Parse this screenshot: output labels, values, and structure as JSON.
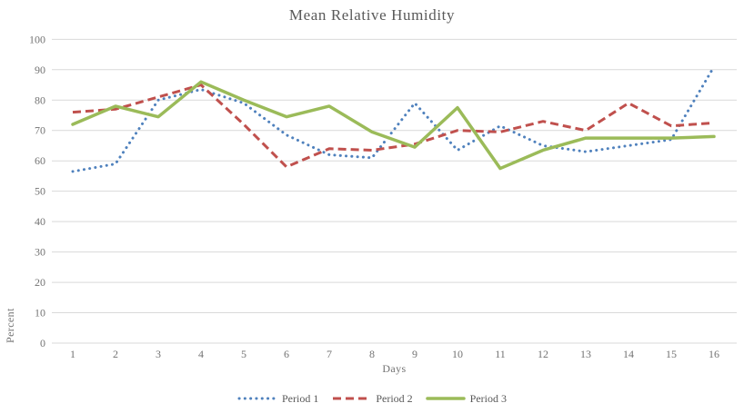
{
  "chart_data": {
    "type": "line",
    "title": "Mean Relative Humidity",
    "xlabel": "Days",
    "ylabel": "Percent",
    "categories": [
      1,
      2,
      3,
      4,
      5,
      6,
      7,
      8,
      9,
      10,
      11,
      12,
      13,
      14,
      15,
      16
    ],
    "y_ticks": [
      0,
      10,
      20,
      30,
      40,
      50,
      60,
      70,
      80,
      90,
      100
    ],
    "ylim": [
      0,
      100
    ],
    "grid": "horizontal",
    "legend_position": "bottom-center",
    "series": [
      {
        "name": "Period 1",
        "style": "dotted",
        "color": "#4F81BD",
        "values": [
          56.5,
          59,
          80,
          83.5,
          79,
          68.5,
          62,
          61,
          79,
          63.5,
          71.5,
          65,
          63,
          65,
          67,
          91
        ]
      },
      {
        "name": "Period 2",
        "style": "dashed",
        "color": "#C0504D",
        "values": [
          76,
          77,
          81,
          85,
          72,
          58,
          64,
          63.5,
          65.5,
          70,
          69.5,
          73,
          70,
          79,
          71.5,
          72.5
        ]
      },
      {
        "name": "Period 3",
        "style": "solid",
        "color": "#9BBB59",
        "values": [
          72,
          78,
          74.5,
          86,
          80,
          74.5,
          78,
          69.5,
          64.5,
          77.5,
          57.5,
          63.5,
          67.5,
          67.5,
          67.5,
          68
        ]
      }
    ]
  },
  "colors": {
    "gridline": "#D9D9D9",
    "title_text": "#595959",
    "tick_text": "#737373",
    "background": "#FFFFFF"
  }
}
